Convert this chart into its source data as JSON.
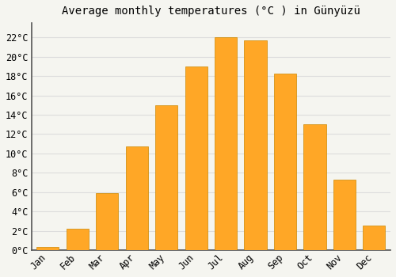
{
  "title": "Average monthly temperatures (°C ) in Günyüzü",
  "months": [
    "Jan",
    "Feb",
    "Mar",
    "Apr",
    "May",
    "Jun",
    "Jul",
    "Aug",
    "Sep",
    "Oct",
    "Nov",
    "Dec"
  ],
  "values": [
    0.3,
    2.2,
    5.9,
    10.7,
    15.0,
    19.0,
    22.0,
    21.7,
    18.3,
    13.0,
    7.3,
    2.5
  ],
  "bar_color": "#FFA726",
  "bar_edge_color": "#CC8800",
  "background_color": "#F5F5F0",
  "grid_color": "#DDDDDD",
  "ytick_labels": [
    "0°C",
    "2°C",
    "4°C",
    "6°C",
    "8°C",
    "10°C",
    "12°C",
    "14°C",
    "16°C",
    "18°C",
    "20°C",
    "22°C"
  ],
  "ytick_values": [
    0,
    2,
    4,
    6,
    8,
    10,
    12,
    14,
    16,
    18,
    20,
    22
  ],
  "ylim": [
    0,
    23.5
  ],
  "title_fontsize": 10,
  "tick_fontsize": 8.5,
  "bar_width": 0.75
}
